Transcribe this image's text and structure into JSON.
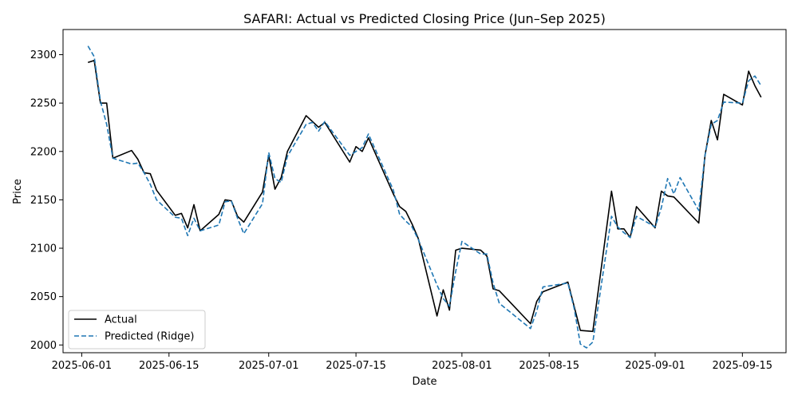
{
  "chart_data": {
    "type": "line",
    "title": "SAFARI: Actual vs Predicted Closing Price (Jun–Sep 2025)",
    "xlabel": "Date",
    "ylabel": "Price",
    "xlim": [
      "2025-05-29",
      "2025-09-22"
    ],
    "ylim": [
      1992,
      2326
    ],
    "x_ticks": [
      "2025-06-01",
      "2025-06-15",
      "2025-07-01",
      "2025-07-15",
      "2025-08-01",
      "2025-08-15",
      "2025-09-01",
      "2025-09-15"
    ],
    "y_ticks": [
      2000,
      2050,
      2100,
      2150,
      2200,
      2250,
      2300
    ],
    "grid": false,
    "legend_position": "lower-left",
    "series": [
      {
        "name": "Actual",
        "color": "#000000",
        "style": "solid",
        "points": [
          [
            "2025-06-02",
            2292
          ],
          [
            "2025-06-03",
            2294
          ],
          [
            "2025-06-04",
            2250
          ],
          [
            "2025-06-05",
            2250
          ],
          [
            "2025-06-06",
            2193
          ],
          [
            "2025-06-09",
            2201
          ],
          [
            "2025-06-10",
            2192
          ],
          [
            "2025-06-11",
            2178
          ],
          [
            "2025-06-12",
            2177
          ],
          [
            "2025-06-13",
            2160
          ],
          [
            "2025-06-16",
            2134
          ],
          [
            "2025-06-17",
            2136
          ],
          [
            "2025-06-18",
            2121
          ],
          [
            "2025-06-19",
            2145
          ],
          [
            "2025-06-20",
            2118
          ],
          [
            "2025-06-23",
            2135
          ],
          [
            "2025-06-24",
            2150
          ],
          [
            "2025-06-25",
            2149
          ],
          [
            "2025-06-26",
            2133
          ],
          [
            "2025-06-27",
            2127
          ],
          [
            "2025-06-30",
            2158
          ],
          [
            "2025-07-01",
            2196
          ],
          [
            "2025-07-02",
            2161
          ],
          [
            "2025-07-03",
            2173
          ],
          [
            "2025-07-04",
            2200
          ],
          [
            "2025-07-07",
            2237
          ],
          [
            "2025-07-08",
            2231
          ],
          [
            "2025-07-09",
            2225
          ],
          [
            "2025-07-10",
            2230
          ],
          [
            "2025-07-14",
            2189
          ],
          [
            "2025-07-15",
            2205
          ],
          [
            "2025-07-16",
            2200
          ],
          [
            "2025-07-17",
            2214
          ],
          [
            "2025-07-21",
            2156
          ],
          [
            "2025-07-22",
            2143
          ],
          [
            "2025-07-23",
            2138
          ],
          [
            "2025-07-24",
            2125
          ],
          [
            "2025-07-25",
            2110
          ],
          [
            "2025-07-28",
            2030
          ],
          [
            "2025-07-29",
            2057
          ],
          [
            "2025-07-30",
            2036
          ],
          [
            "2025-07-31",
            2098
          ],
          [
            "2025-08-01",
            2100
          ],
          [
            "2025-08-04",
            2098
          ],
          [
            "2025-08-05",
            2092
          ],
          [
            "2025-08-06",
            2058
          ],
          [
            "2025-08-07",
            2056
          ],
          [
            "2025-08-12",
            2022
          ],
          [
            "2025-08-13",
            2045
          ],
          [
            "2025-08-14",
            2055
          ],
          [
            "2025-08-18",
            2065
          ],
          [
            "2025-08-19",
            2040
          ],
          [
            "2025-08-20",
            2015
          ],
          [
            "2025-08-22",
            2014
          ],
          [
            "2025-08-25",
            2159
          ],
          [
            "2025-08-26",
            2120
          ],
          [
            "2025-08-27",
            2120
          ],
          [
            "2025-08-28",
            2111
          ],
          [
            "2025-08-29",
            2143
          ],
          [
            "2025-09-01",
            2121
          ],
          [
            "2025-09-02",
            2159
          ],
          [
            "2025-09-03",
            2154
          ],
          [
            "2025-09-04",
            2153
          ],
          [
            "2025-09-08",
            2126
          ],
          [
            "2025-09-09",
            2196
          ],
          [
            "2025-09-10",
            2232
          ],
          [
            "2025-09-11",
            2212
          ],
          [
            "2025-09-12",
            2259
          ],
          [
            "2025-09-15",
            2248
          ],
          [
            "2025-09-16",
            2283
          ],
          [
            "2025-09-17",
            2268
          ],
          [
            "2025-09-18",
            2256
          ]
        ]
      },
      {
        "name": "Predicted (Ridge)",
        "color": "#1f77b4",
        "style": "dashed",
        "points": [
          [
            "2025-06-02",
            2309
          ],
          [
            "2025-06-03",
            2298
          ],
          [
            "2025-06-04",
            2252
          ],
          [
            "2025-06-05",
            2228
          ],
          [
            "2025-06-06",
            2193
          ],
          [
            "2025-06-09",
            2187
          ],
          [
            "2025-06-10",
            2188
          ],
          [
            "2025-06-11",
            2178
          ],
          [
            "2025-06-12",
            2166
          ],
          [
            "2025-06-13",
            2150
          ],
          [
            "2025-06-16",
            2132
          ],
          [
            "2025-06-17",
            2131
          ],
          [
            "2025-06-18",
            2113
          ],
          [
            "2025-06-19",
            2131
          ],
          [
            "2025-06-20",
            2118
          ],
          [
            "2025-06-23",
            2124
          ],
          [
            "2025-06-24",
            2148
          ],
          [
            "2025-06-25",
            2149
          ],
          [
            "2025-06-26",
            2131
          ],
          [
            "2025-06-27",
            2115
          ],
          [
            "2025-06-30",
            2146
          ],
          [
            "2025-07-01",
            2199
          ],
          [
            "2025-07-02",
            2172
          ],
          [
            "2025-07-03",
            2168
          ],
          [
            "2025-07-04",
            2195
          ],
          [
            "2025-07-07",
            2228
          ],
          [
            "2025-07-08",
            2230
          ],
          [
            "2025-07-09",
            2221
          ],
          [
            "2025-07-10",
            2231
          ],
          [
            "2025-07-14",
            2196
          ],
          [
            "2025-07-15",
            2200
          ],
          [
            "2025-07-16",
            2204
          ],
          [
            "2025-07-17",
            2218
          ],
          [
            "2025-07-21",
            2160
          ],
          [
            "2025-07-22",
            2135
          ],
          [
            "2025-07-23",
            2128
          ],
          [
            "2025-07-24",
            2122
          ],
          [
            "2025-07-25",
            2109
          ],
          [
            "2025-07-28",
            2062
          ],
          [
            "2025-07-29",
            2048
          ],
          [
            "2025-07-30",
            2040
          ],
          [
            "2025-07-31",
            2076
          ],
          [
            "2025-08-01",
            2107
          ],
          [
            "2025-08-04",
            2094
          ],
          [
            "2025-08-05",
            2094
          ],
          [
            "2025-08-06",
            2064
          ],
          [
            "2025-08-07",
            2043
          ],
          [
            "2025-08-12",
            2017
          ],
          [
            "2025-08-13",
            2035
          ],
          [
            "2025-08-14",
            2060
          ],
          [
            "2025-08-18",
            2064
          ],
          [
            "2025-08-19",
            2038
          ],
          [
            "2025-08-20",
            2001
          ],
          [
            "2025-08-21",
            1997
          ],
          [
            "2025-08-22",
            2003
          ],
          [
            "2025-08-25",
            2133
          ],
          [
            "2025-08-26",
            2122
          ],
          [
            "2025-08-27",
            2116
          ],
          [
            "2025-08-28",
            2111
          ],
          [
            "2025-08-29",
            2133
          ],
          [
            "2025-09-01",
            2122
          ],
          [
            "2025-09-02",
            2142
          ],
          [
            "2025-09-03",
            2172
          ],
          [
            "2025-09-04",
            2156
          ],
          [
            "2025-09-05",
            2173
          ],
          [
            "2025-09-08",
            2139
          ],
          [
            "2025-09-09",
            2196
          ],
          [
            "2025-09-10",
            2228
          ],
          [
            "2025-09-11",
            2232
          ],
          [
            "2025-09-12",
            2251
          ],
          [
            "2025-09-15",
            2250
          ],
          [
            "2025-09-16",
            2273
          ],
          [
            "2025-09-17",
            2278
          ],
          [
            "2025-09-18",
            2268
          ]
        ]
      }
    ]
  }
}
